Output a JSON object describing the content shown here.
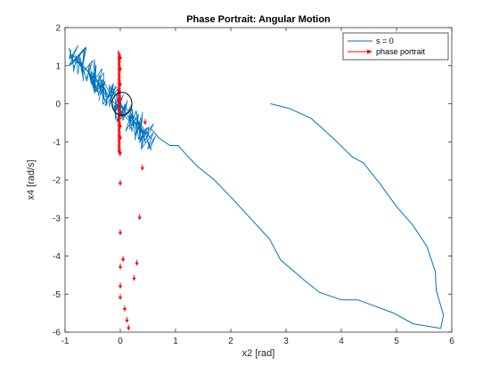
{
  "chart_data": {
    "type": "line",
    "title": "Phase Portrait: Angular Motion",
    "xlabel": "x2 [rad]",
    "ylabel": "x4 [rad/s]",
    "xlim": [
      -1,
      6
    ],
    "ylim": [
      -6,
      2
    ],
    "xticks": [
      "-1",
      "0",
      "1",
      "2",
      "3",
      "4",
      "5",
      "6"
    ],
    "yticks": [
      "2",
      "1",
      "0",
      "-1",
      "-2",
      "-3",
      "-4",
      "-5",
      "-6"
    ],
    "grid": false,
    "legend_position": "top-right",
    "colors": {
      "trajectory": "#0072BD",
      "arrows": "#FF0000",
      "circle": "#000000"
    },
    "series": [
      {
        "name": "s = 0",
        "style": "line",
        "x": [
          2.72,
          3.05,
          3.45,
          3.85,
          4.2,
          4.4,
          4.7,
          5.0,
          5.3,
          5.55,
          5.7,
          5.72,
          5.85,
          5.8,
          5.3,
          4.95,
          4.3,
          4.0,
          3.6,
          3.3,
          2.9,
          2.7,
          2.35,
          2.0,
          1.7,
          1.4,
          1.2,
          1.05,
          0.9,
          0.7,
          0.55
        ],
        "y": [
          0.0,
          -0.12,
          -0.38,
          -0.9,
          -1.4,
          -1.55,
          -2.1,
          -2.7,
          -3.2,
          -3.75,
          -4.4,
          -4.9,
          -5.55,
          -5.9,
          -5.78,
          -5.5,
          -5.15,
          -5.15,
          -4.95,
          -4.6,
          -4.1,
          -3.55,
          -3.0,
          -2.45,
          -2.0,
          -1.65,
          -1.35,
          -1.1,
          -1.1,
          -0.9,
          -0.65
        ]
      },
      {
        "name": "phase portrait",
        "style": "quiver",
        "x": [
          0.0,
          0.0,
          0.0,
          0.0,
          0.0,
          0.0,
          0.0,
          0.0,
          0.0,
          0.0,
          0.0,
          0.0,
          0.0,
          0.05,
          0.08,
          0.12,
          0.15,
          0.25,
          0.3,
          0.35,
          0.4,
          0.45
        ],
        "y": [
          1.3,
          1.0,
          0.6,
          0.2,
          -0.2,
          -0.5,
          -0.8,
          -1.2,
          -2.0,
          -3.3,
          -4.2,
          -4.7,
          -5.0,
          -4.0,
          -5.3,
          -5.6,
          -5.8,
          -4.5,
          -4.1,
          -2.9,
          -1.6,
          -0.4
        ],
        "u": [
          0.0,
          0.0,
          0.0,
          0.0,
          0.0,
          0.0,
          0.0,
          0.0,
          0.0,
          0.0,
          0.0,
          0.0,
          0.0,
          0.0,
          0.0,
          0.0,
          0.0,
          0.0,
          0.0,
          0.0,
          0.0,
          0.0
        ],
        "v": [
          -0.15,
          -0.15,
          -0.15,
          -0.15,
          -0.15,
          -0.15,
          -0.15,
          -0.15,
          -0.15,
          -0.15,
          -0.15,
          -0.15,
          -0.15,
          -0.15,
          -0.15,
          -0.15,
          -0.15,
          -0.15,
          -0.15,
          -0.15,
          -0.15,
          -0.15
        ]
      }
    ],
    "annotations": [
      {
        "type": "circle",
        "center": [
          0.03,
          0.0
        ],
        "radius_x": 0.18,
        "radius_y": 0.3
      }
    ]
  },
  "legend": {
    "items": [
      "s = 0",
      "phase portrait"
    ]
  }
}
